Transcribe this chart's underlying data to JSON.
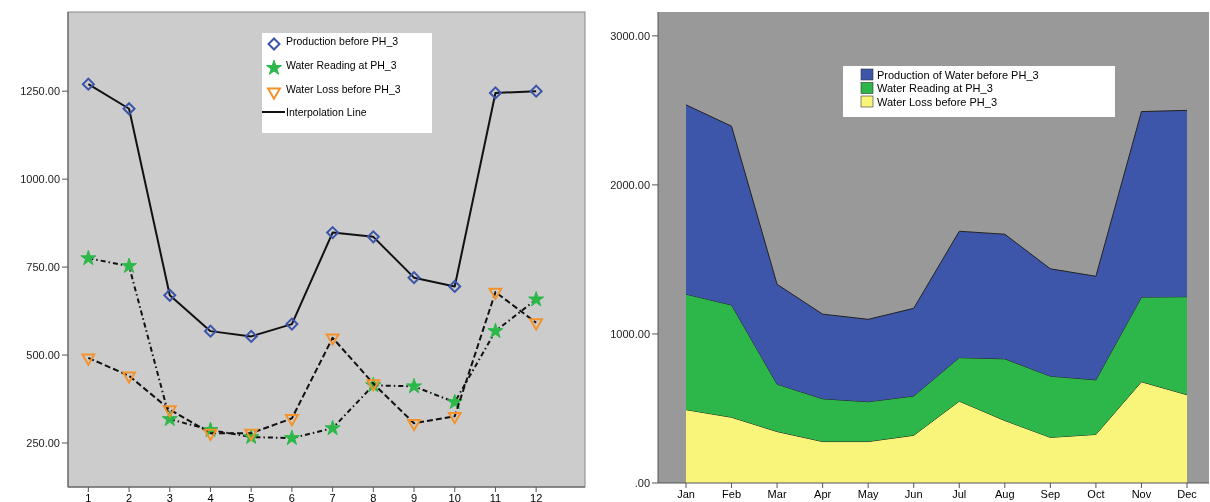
{
  "chart_data": [
    {
      "type": "line",
      "x": [
        1,
        2,
        3,
        4,
        5,
        6,
        7,
        8,
        9,
        10,
        11,
        12
      ],
      "xlim": [
        0.5,
        13.2
      ],
      "xticks": [
        1,
        2,
        3,
        4,
        5,
        6,
        7,
        8,
        9,
        10,
        11,
        12
      ],
      "ylim": [
        125,
        1475
      ],
      "yticks": [
        {
          "value": 250,
          "label": "250.00"
        },
        {
          "value": 500,
          "label": "500.00"
        },
        {
          "value": 750,
          "label": "750.00"
        },
        {
          "value": 1000,
          "label": "1000.00"
        },
        {
          "value": 1250,
          "label": "1250.00"
        }
      ],
      "grid": false,
      "legend": "top right",
      "annotations": [
        "Interpolation Line"
      ],
      "series": [
        {
          "name": "Production  before PH_3",
          "color": "#3c55a8",
          "marker": "diamond",
          "line_style": "solid",
          "values": [
            1270,
            1200,
            670,
            568,
            553,
            588,
            848,
            836,
            720,
            695,
            1245,
            1250
          ]
        },
        {
          "name": "Water Reading at PH_3",
          "color": "#2db84a",
          "marker": "star",
          "line_style": "dotted",
          "values": [
            775,
            753,
            318,
            287,
            267,
            264,
            292,
            414,
            411,
            366,
            568,
            658
          ]
        },
        {
          "name": "Water Loss before PH_3",
          "color": "#f5922a",
          "marker": "triangle",
          "line_style": "dashed",
          "values": [
            492,
            441,
            345,
            278,
            278,
            320,
            549,
            419,
            306,
            326,
            679,
            592
          ]
        }
      ]
    },
    {
      "type": "area",
      "stacked": true,
      "categories": [
        "Jan",
        "Feb",
        "Mar",
        "Apr",
        "May",
        "Jun",
        "Jul",
        "Aug",
        "Sep",
        "Oct",
        "Nov",
        "Dec"
      ],
      "ylim": [
        0,
        3160
      ],
      "yticks": [
        {
          "value": 0,
          "label": ".00"
        },
        {
          "value": 1000,
          "label": "1000.00"
        },
        {
          "value": 2000,
          "label": "2000.00"
        },
        {
          "value": 3000,
          "label": "3000.00"
        }
      ],
      "grid": false,
      "legend": "top",
      "series": [
        {
          "name": "Water Loss before PH_3",
          "color": "#f9f57a",
          "values": [
            492,
            441,
            345,
            278,
            278,
            320,
            549,
            419,
            306,
            326,
            679,
            592
          ]
        },
        {
          "name": "Water Reading at PH_3",
          "color": "#2db74a",
          "values": [
            775,
            753,
            318,
            287,
            267,
            264,
            292,
            414,
            411,
            366,
            568,
            658
          ]
        },
        {
          "name": "Production of Water before PH_3",
          "color": "#3d56a9",
          "values": [
            1270,
            1200,
            670,
            568,
            553,
            588,
            848,
            836,
            720,
            695,
            1245,
            1250
          ]
        }
      ]
    }
  ]
}
